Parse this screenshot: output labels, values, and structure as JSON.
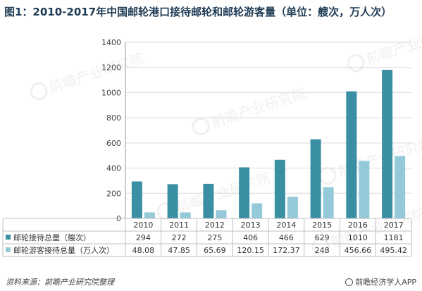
{
  "title": "图1：2010-2017年中国邮轮港口接待邮轮和邮轮游客量（单位：艘次，万人次）",
  "footer": {
    "source": "资料来源：前瞻产业研究院整理",
    "brand": "前瞻经济学人APP"
  },
  "watermark": "前瞻产业研究院",
  "colors": {
    "series1": "#3a8fa3",
    "series2": "#93c9d9",
    "grid": "#d9d9d9",
    "axis": "#999999",
    "title": "#1f3b55"
  },
  "chart_data": {
    "type": "bar",
    "title": "图1：2010-2017年中国邮轮港口接待邮轮和邮轮游客量（单位：艘次，万人次）",
    "categories": [
      "2010",
      "2011",
      "2012",
      "2013",
      "2014",
      "2015",
      "2016",
      "2017"
    ],
    "yticks": [
      "0",
      "200",
      "400",
      "600",
      "800",
      "1000",
      "1200",
      "1400"
    ],
    "ylim": [
      0,
      1400
    ],
    "grid": true,
    "series": [
      {
        "name": "邮轮接待总量（艘次）",
        "values": [
          294,
          272,
          275,
          406,
          466,
          629,
          1010,
          1181
        ],
        "labels": [
          "294",
          "272",
          "275",
          "406",
          "466",
          "629",
          "1010",
          "1181"
        ]
      },
      {
        "name": "邮轮游客接待总量（万人次）",
        "values": [
          48.08,
          47.85,
          65.69,
          120.15,
          172.37,
          248,
          456.66,
          495.42
        ],
        "labels": [
          "48.08",
          "47.85",
          "65.69",
          "120.15",
          "172.37",
          "248",
          "456.66",
          "495.42"
        ]
      }
    ]
  }
}
